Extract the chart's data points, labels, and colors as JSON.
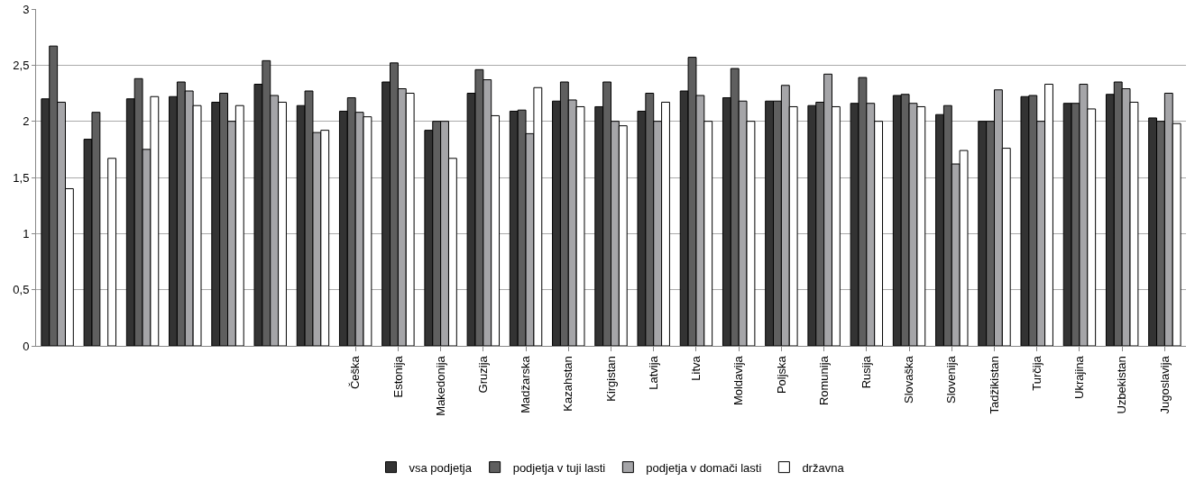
{
  "chart_data": {
    "type": "bar",
    "categories": [
      null,
      null,
      null,
      null,
      null,
      null,
      null,
      "Češka",
      "Estonija",
      "Makedonija",
      "Gruzija",
      "Madžarska",
      "Kazahstan",
      "Kirgistan",
      "Latvija",
      "Litva",
      "Moldavija",
      "Poljska",
      "Romunija",
      "Rusija",
      "Slovaška",
      "Slovenija",
      "Tadžikistan",
      "Turčija",
      "Ukrajina",
      "Uzbekistan",
      "Jugoslavija"
    ],
    "series": [
      {
        "name": "vsa podjetja",
        "color": "#333333",
        "values": [
          2.2,
          1.84,
          2.2,
          2.22,
          2.17,
          2.33,
          2.14,
          2.09,
          2.35,
          1.92,
          2.25,
          2.09,
          2.18,
          2.13,
          2.09,
          2.27,
          2.21,
          2.18,
          2.14,
          2.16,
          2.23,
          2.06,
          2.0,
          2.22,
          2.16,
          2.24,
          2.03
        ]
      },
      {
        "name": "podjetja v tuji lasti",
        "color": "#5f5f5f",
        "values": [
          2.67,
          2.08,
          2.38,
          2.35,
          2.25,
          2.54,
          2.27,
          2.21,
          2.52,
          2.0,
          2.46,
          2.1,
          2.35,
          2.35,
          2.25,
          2.57,
          2.47,
          2.18,
          2.17,
          2.39,
          2.24,
          2.14,
          2.0,
          2.23,
          2.16,
          2.35,
          2.0
        ]
      },
      {
        "name": "podjetja v domači lasti",
        "color": "#a5a5a8",
        "values": [
          2.17,
          null,
          1.75,
          2.27,
          2.0,
          2.23,
          1.9,
          2.08,
          2.29,
          2.0,
          2.37,
          1.89,
          2.19,
          2.0,
          2.0,
          2.23,
          2.18,
          2.32,
          2.42,
          2.16,
          2.16,
          1.62,
          2.28,
          2.0,
          2.33,
          2.29,
          2.25
        ]
      },
      {
        "name": "državna",
        "color": "#ffffff",
        "values": [
          1.4,
          1.67,
          2.22,
          2.14,
          2.14,
          2.17,
          1.92,
          2.04,
          2.25,
          1.67,
          2.05,
          2.3,
          2.13,
          1.96,
          2.17,
          2.0,
          2.0,
          2.13,
          2.13,
          2.0,
          2.13,
          1.74,
          1.76,
          2.33,
          2.11,
          2.17,
          1.98
        ]
      }
    ],
    "ylim": [
      0,
      3
    ],
    "yticks": [
      0,
      {
        "value": 0.5,
        "label": "0,5"
      },
      1,
      {
        "value": 1.5,
        "label": "1,5"
      },
      2,
      {
        "value": 2.5,
        "label": "2,5"
      },
      3
    ],
    "grid": "y",
    "legend": "bottom"
  }
}
